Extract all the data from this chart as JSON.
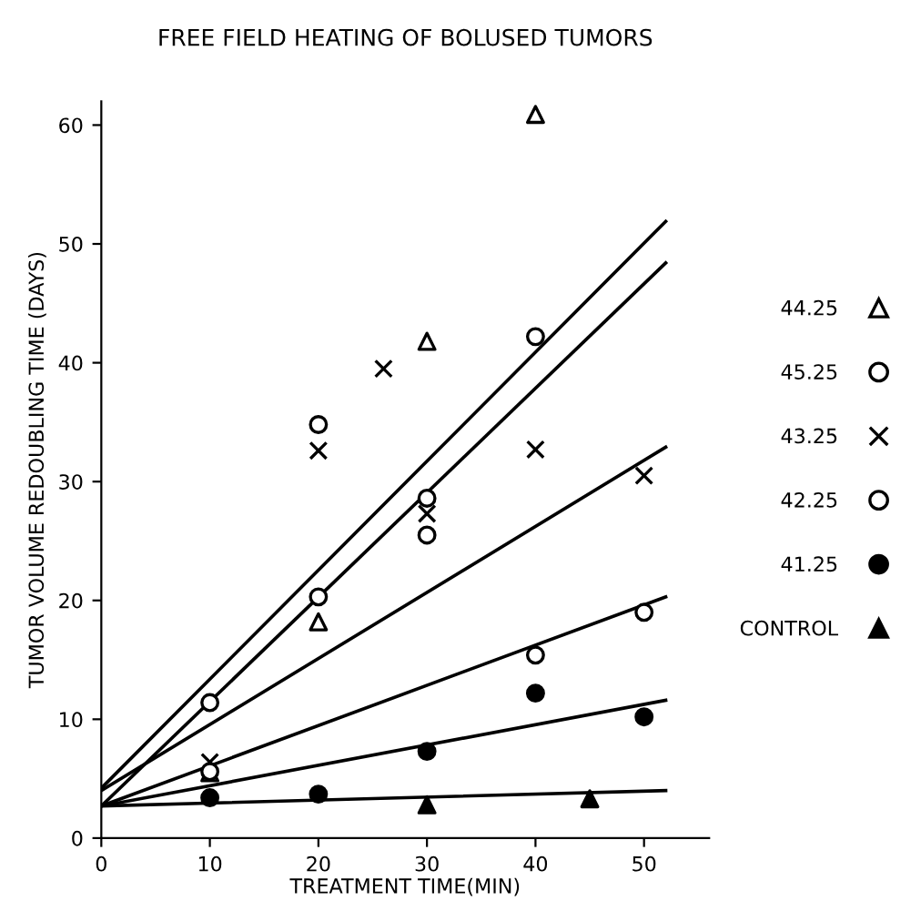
{
  "chart_data": {
    "type": "scatter",
    "title": "FREE FIELD HEATING OF BOLUSED TUMORS",
    "xlabel": "TREATMENT TIME(MIN)",
    "ylabel": "TUMOR VOLUME REDOUBLING TIME (DAYS)",
    "xlim": [
      0,
      56
    ],
    "ylim": [
      0,
      62
    ],
    "xticks": [
      0,
      10,
      20,
      30,
      40,
      50
    ],
    "yticks": [
      0,
      10,
      20,
      30,
      40,
      50,
      60
    ],
    "grid": false,
    "legend": "right",
    "series": [
      {
        "name": "44.25",
        "color": "#ffffff",
        "marker": "triangle",
        "x": [
          10,
          20,
          30,
          40
        ],
        "values": [
          5.5,
          18.2,
          41.8,
          60.9
        ]
      },
      {
        "type": "line",
        "color": "#000000",
        "x": [
          0,
          52
        ],
        "values": [
          4.2,
          51.9
        ]
      },
      {
        "name": "45.25",
        "color": "#ffffff",
        "marker": "circle",
        "x": [
          10,
          20,
          30,
          40
        ],
        "values": [
          11.4,
          34.8,
          25.5,
          42.2
        ]
      },
      {
        "type": "line",
        "color": "#000000",
        "x": [
          0,
          52
        ],
        "values": [
          2.7,
          48.4
        ]
      },
      {
        "name": "43.25",
        "color": "#000000",
        "marker": "cross",
        "x": [
          10,
          20,
          26,
          30,
          40,
          50
        ],
        "values": [
          6.4,
          32.6,
          39.5,
          27.3,
          32.7,
          30.5
        ]
      },
      {
        "type": "line",
        "color": "#000000",
        "x": [
          0,
          52
        ],
        "values": [
          4.0,
          32.9
        ]
      },
      {
        "name": "42.25",
        "color": "#ffffff",
        "marker": "circle",
        "x": [
          10,
          20,
          30,
          40,
          50
        ],
        "values": [
          5.6,
          20.3,
          28.6,
          15.4,
          19.0
        ]
      },
      {
        "type": "line",
        "color": "#000000",
        "x": [
          0,
          52
        ],
        "values": [
          2.7,
          20.3
        ]
      },
      {
        "name": "41.25",
        "color": "#000000",
        "marker": "circle",
        "x": [
          10,
          20,
          30,
          40,
          50
        ],
        "values": [
          3.4,
          3.7,
          7.3,
          12.2,
          10.2
        ]
      },
      {
        "type": "line",
        "color": "#000000",
        "x": [
          0,
          52
        ],
        "values": [
          2.7,
          11.6
        ]
      },
      {
        "name": "CONTROL",
        "color": "#000000",
        "marker": "triangle",
        "x": [
          30,
          45
        ],
        "values": [
          2.8,
          3.3
        ]
      },
      {
        "type": "line",
        "color": "#000000",
        "x": [
          0,
          52
        ],
        "values": [
          2.7,
          4.0
        ]
      }
    ]
  }
}
